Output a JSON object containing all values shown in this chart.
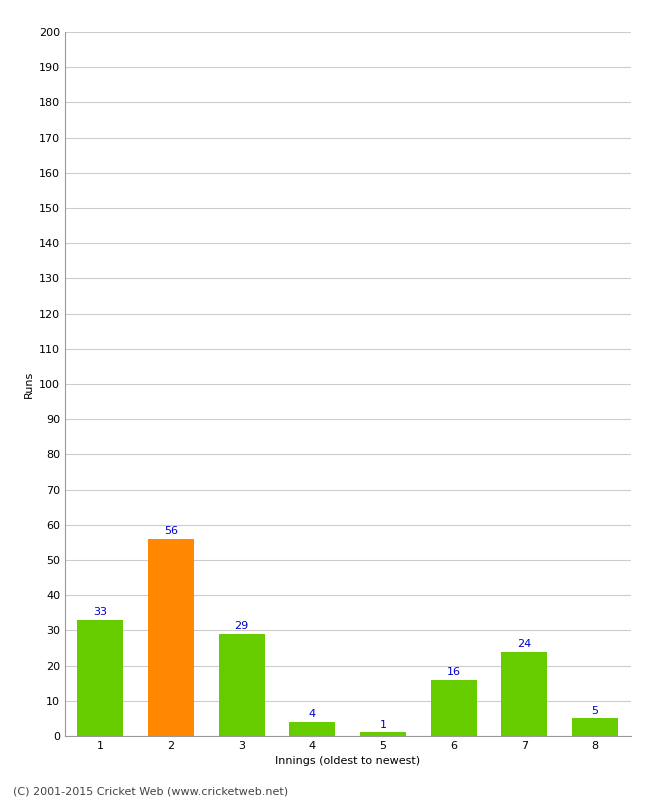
{
  "xlabel": "Innings (oldest to newest)",
  "ylabel": "Runs",
  "categories": [
    "1",
    "2",
    "3",
    "4",
    "5",
    "6",
    "7",
    "8"
  ],
  "values": [
    33,
    56,
    29,
    4,
    1,
    16,
    24,
    5
  ],
  "bar_colors": [
    "#66cc00",
    "#ff8800",
    "#66cc00",
    "#66cc00",
    "#66cc00",
    "#66cc00",
    "#66cc00",
    "#66cc00"
  ],
  "label_color": "#0000cc",
  "ylim": [
    0,
    200
  ],
  "yticks": [
    0,
    10,
    20,
    30,
    40,
    50,
    60,
    70,
    80,
    90,
    100,
    110,
    120,
    130,
    140,
    150,
    160,
    170,
    180,
    190,
    200
  ],
  "grid_color": "#cccccc",
  "bg_color": "#ffffff",
  "footer": "(C) 2001-2015 Cricket Web (www.cricketweb.net)",
  "label_fontsize": 8,
  "axis_label_fontsize": 8,
  "tick_fontsize": 8,
  "footer_fontsize": 8
}
